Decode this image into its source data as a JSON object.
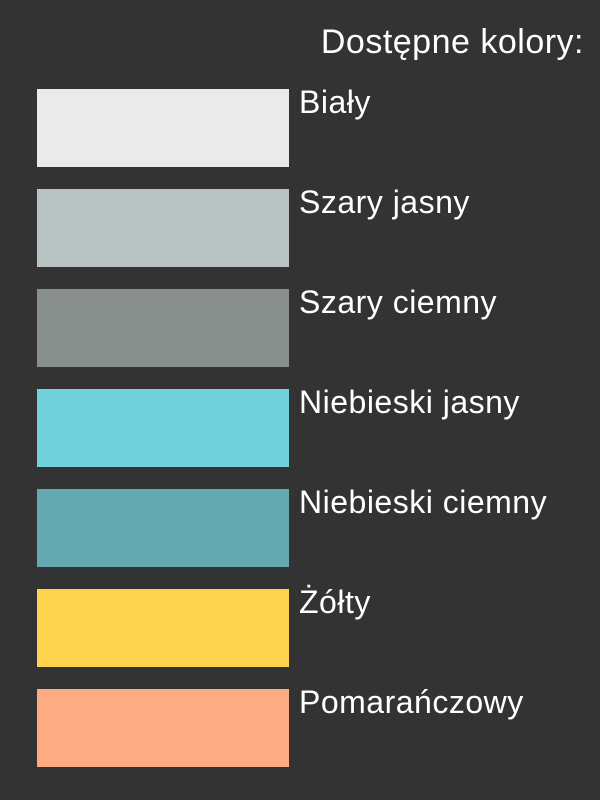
{
  "page": {
    "background": "#333333",
    "text_color": "#FFFFFF"
  },
  "header": {
    "title": "Dostępne kolory:"
  },
  "color_list": {
    "items": [
      {
        "label": "Biały",
        "hex": "#EAEAEA"
      },
      {
        "label": "Szary jasny",
        "hex": "#B8C4C4"
      },
      {
        "label": "Szary ciemny",
        "hex": "#888F8C"
      },
      {
        "label": "Niebieski jasny",
        "hex": "#70D1DB"
      },
      {
        "label": "Niebieski ciemny",
        "hex": "#64A9B1"
      },
      {
        "label": "Żółty",
        "hex": "#FDD34D"
      },
      {
        "label": "Pomarańczowy",
        "hex": "#FDAB83"
      }
    ]
  }
}
